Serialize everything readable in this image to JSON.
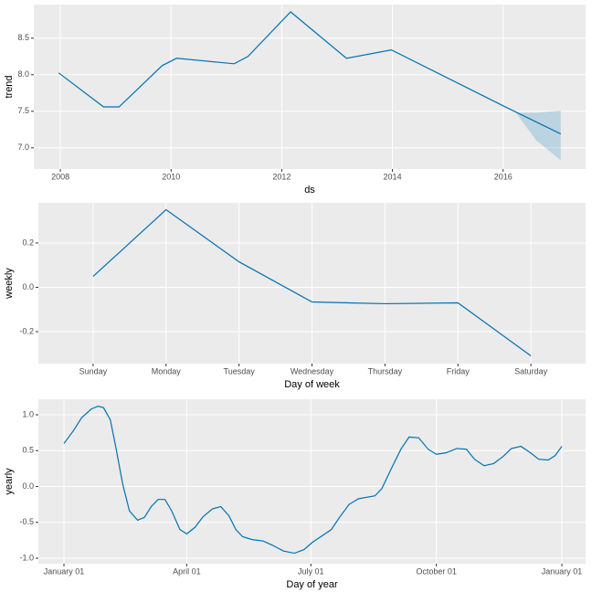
{
  "chart_data": [
    {
      "type": "line",
      "xlabel": "ds",
      "ylabel": "trend",
      "color": "#0072B2",
      "grid": true,
      "x": [
        2007.97,
        2008.78,
        2009.06,
        2009.84,
        2010.1,
        2011.14,
        2011.39,
        2012.16,
        2013.17,
        2013.98,
        2016.0,
        2017.04
      ],
      "values": [
        8.025,
        7.56,
        7.56,
        8.125,
        8.225,
        8.15,
        8.25,
        8.86,
        8.225,
        8.34,
        7.575,
        7.19
      ],
      "band": {
        "x": [
          2016.23,
          2016.6,
          2017.04
        ],
        "lower": [
          7.48,
          7.1,
          6.83
        ],
        "upper": [
          7.48,
          7.48,
          7.51
        ]
      },
      "xlim": [
        2007.52,
        2017.49
      ],
      "ylim": [
        6.71,
        8.96
      ],
      "xticks": [
        2008,
        2010,
        2012,
        2014,
        2016
      ],
      "yticks": [
        {
          "value": 7,
          "label": "7.0"
        },
        7.5,
        {
          "value": 8,
          "label": "8.0"
        },
        8.5
      ]
    },
    {
      "type": "line",
      "xlabel": "Day of week",
      "ylabel": "weekly",
      "color": "#0072B2",
      "grid": true,
      "categories": [
        "Sunday",
        "Monday",
        "Tuesday",
        "Wednesday",
        "Thursday",
        "Friday",
        "Saturday"
      ],
      "values": [
        0.049,
        0.35,
        0.115,
        -0.066,
        -0.074,
        -0.07,
        -0.309
      ],
      "ylim": [
        -0.344,
        0.381
      ],
      "yticks": [
        -0.2,
        {
          "value": 0,
          "label": "0.0"
        },
        0.2
      ]
    },
    {
      "type": "line",
      "xlabel": "Day of year",
      "ylabel": "yearly",
      "color": "#0072B2",
      "grid": true,
      "x": [
        0,
        7,
        13,
        20,
        25,
        29,
        34,
        38,
        43,
        48,
        54,
        59,
        64,
        69,
        74,
        79,
        85,
        90,
        96,
        102,
        109,
        115,
        121,
        126,
        131,
        138,
        146,
        153,
        161,
        169,
        176,
        182,
        189,
        196,
        202,
        209,
        216,
        222,
        228,
        233,
        240,
        247,
        253,
        260,
        267,
        273,
        280,
        288,
        295,
        301,
        308,
        315,
        322,
        328,
        335,
        342,
        348,
        355,
        360,
        365
      ],
      "values": [
        0.6,
        0.78,
        0.96,
        1.08,
        1.12,
        1.1,
        0.93,
        0.55,
        0.04,
        -0.34,
        -0.47,
        -0.43,
        -0.28,
        -0.18,
        -0.18,
        -0.34,
        -0.6,
        -0.66,
        -0.57,
        -0.42,
        -0.31,
        -0.28,
        -0.41,
        -0.6,
        -0.7,
        -0.74,
        -0.76,
        -0.82,
        -0.9,
        -0.93,
        -0.88,
        -0.78,
        -0.69,
        -0.6,
        -0.43,
        -0.25,
        -0.17,
        -0.15,
        -0.13,
        -0.03,
        0.25,
        0.52,
        0.69,
        0.68,
        0.52,
        0.45,
        0.47,
        0.53,
        0.52,
        0.38,
        0.29,
        0.32,
        0.42,
        0.53,
        0.56,
        0.47,
        0.38,
        0.37,
        0.43,
        0.56
      ],
      "xlim": [
        -18.75,
        382.4
      ],
      "ylim": [
        -1.076,
        1.217
      ],
      "xticks": [
        {
          "value": 0,
          "label": "January 01"
        },
        {
          "value": 90,
          "label": "April 01"
        },
        {
          "value": 181,
          "label": "July 01"
        },
        {
          "value": 273,
          "label": "October 01"
        },
        {
          "value": 365,
          "label": "January 01"
        }
      ],
      "yticks": [
        {
          "value": -1,
          "label": "-1.0"
        },
        -0.5,
        {
          "value": 0,
          "label": "0.0"
        },
        0.5,
        {
          "value": 1,
          "label": "1.0"
        }
      ]
    }
  ]
}
